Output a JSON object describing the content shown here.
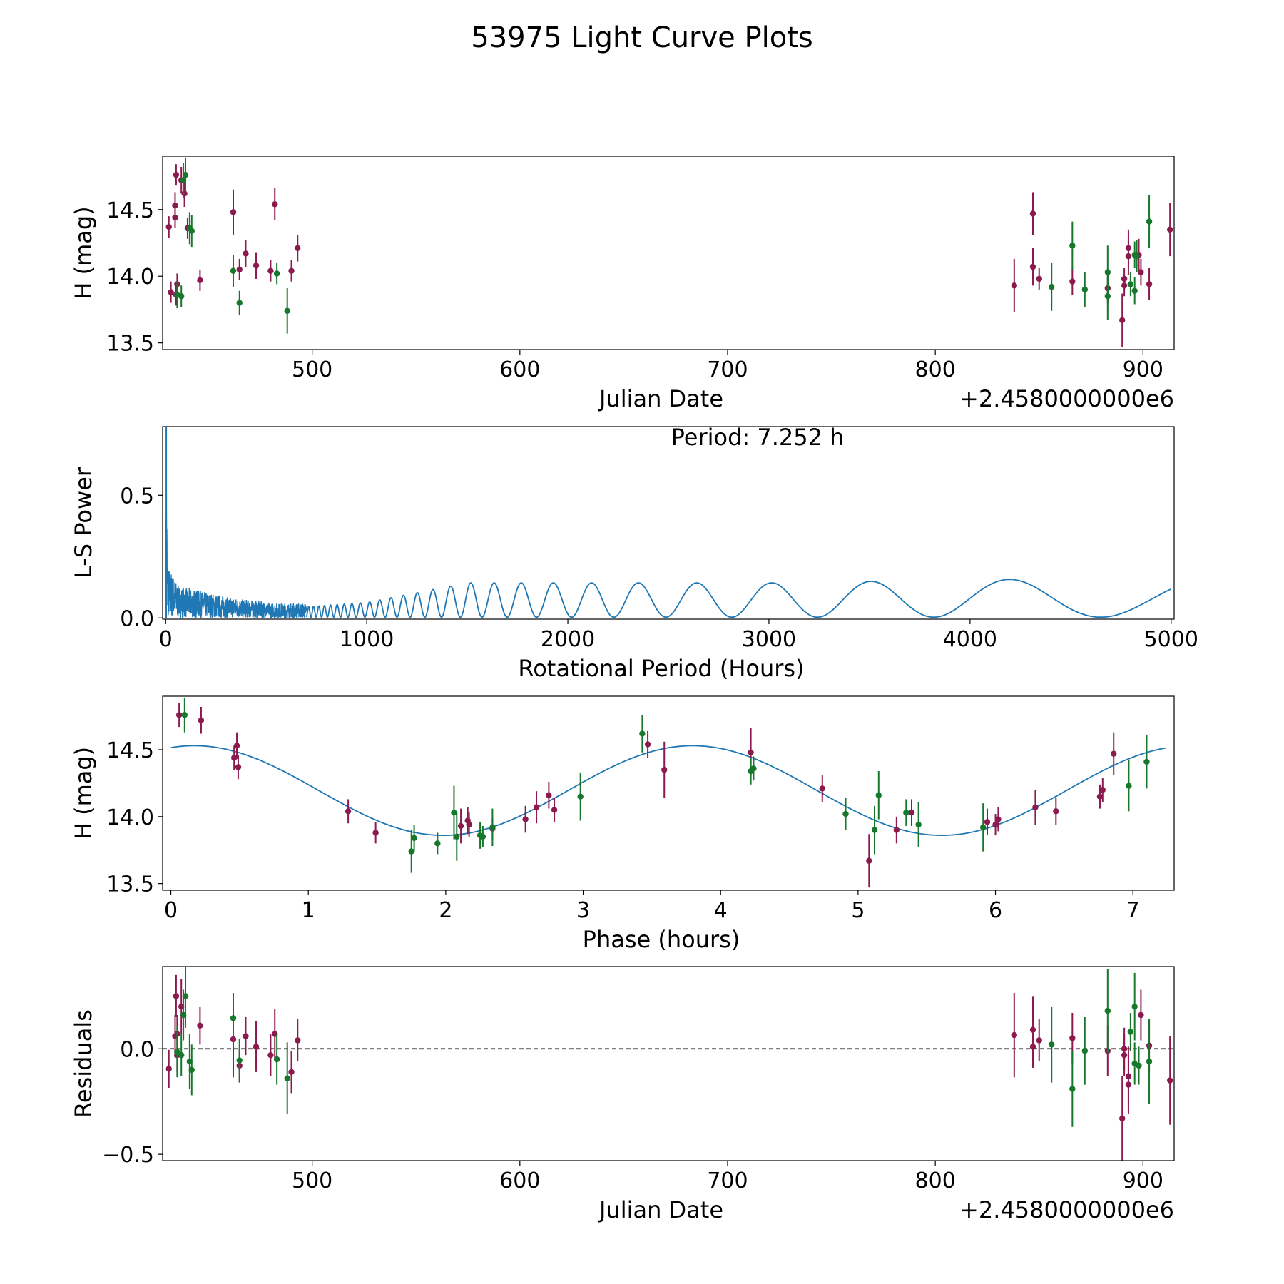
{
  "figure": {
    "title": "53975 Light Curve Plots",
    "colors": {
      "series_a": "#8b1a4f",
      "series_b": "#15782b",
      "curve": "#1f77b4",
      "axis": "#000000"
    }
  },
  "chart_data": [
    {
      "id": "lightcurve",
      "type": "scatter",
      "title": "",
      "xlabel": "Julian Date",
      "ylabel": "H (mag)",
      "offset_label": "+2.4580000000e6",
      "xlim": [
        428,
        915
      ],
      "ylim": [
        13.45,
        14.9
      ],
      "xticks": [
        500,
        600,
        700,
        800,
        900
      ],
      "xtick_labels": [
        "500",
        "600",
        "700",
        "800",
        "900"
      ],
      "yticks": [
        13.5,
        14.0,
        14.5
      ],
      "ytick_labels": [
        "13.5",
        "14.0",
        "14.5"
      ],
      "series": [
        {
          "name": "series-a",
          "color": "#8b1a4f",
          "points": [
            [
              431,
              14.37,
              0.08
            ],
            [
              432,
              13.88,
              0.08
            ],
            [
              434,
              14.44,
              0.08
            ],
            [
              434,
              14.53,
              0.1
            ],
            [
              434.5,
              14.76,
              0.08
            ],
            [
              434.5,
              13.86,
              0.08
            ],
            [
              435,
              13.94,
              0.08
            ],
            [
              437,
              14.72,
              0.1
            ],
            [
              438.5,
              14.62,
              0.1
            ],
            [
              440,
              14.36,
              0.08
            ],
            [
              446,
              13.97,
              0.08
            ],
            [
              462,
              14.48,
              0.17
            ],
            [
              465,
              14.05,
              0.08
            ],
            [
              468,
              14.17,
              0.1
            ],
            [
              473,
              14.08,
              0.1
            ],
            [
              480,
              14.04,
              0.08
            ],
            [
              482,
              14.54,
              0.12
            ],
            [
              490,
              14.04,
              0.08
            ],
            [
              493,
              14.21,
              0.1
            ],
            [
              838,
              13.93,
              0.2
            ],
            [
              847,
              14.07,
              0.14
            ],
            [
              847,
              14.47,
              0.16
            ],
            [
              850,
              13.98,
              0.08
            ],
            [
              866,
              13.96,
              0.1
            ],
            [
              883,
              13.91,
              0.12
            ],
            [
              890,
              13.67,
              0.2
            ],
            [
              891,
              13.93,
              0.08
            ],
            [
              891,
              13.98,
              0.08
            ],
            [
              893,
              14.15,
              0.14
            ],
            [
              893,
              14.21,
              0.14
            ],
            [
              898,
              14.16,
              0.12
            ],
            [
              899,
              14.03,
              0.1
            ],
            [
              903,
              13.94,
              0.12
            ],
            [
              913,
              14.35,
              0.2
            ]
          ]
        },
        {
          "name": "series-b",
          "color": "#15782b",
          "points": [
            [
              435,
              13.86,
              0.1
            ],
            [
              437,
              13.85,
              0.08
            ],
            [
              438,
              14.72,
              0.13
            ],
            [
              439,
              14.76,
              0.13
            ],
            [
              441,
              14.36,
              0.12
            ],
            [
              442,
              14.34,
              0.12
            ],
            [
              462,
              14.04,
              0.12
            ],
            [
              465,
              13.8,
              0.09
            ],
            [
              483,
              14.02,
              0.08
            ],
            [
              488,
              13.74,
              0.17
            ],
            [
              856,
              13.92,
              0.18
            ],
            [
              866,
              14.23,
              0.18
            ],
            [
              872,
              13.9,
              0.13
            ],
            [
              883,
              14.03,
              0.2
            ],
            [
              883,
              13.85,
              0.18
            ],
            [
              894,
              13.94,
              0.09
            ],
            [
              896,
              14.16,
              0.1
            ],
            [
              896,
              13.89,
              0.1
            ],
            [
              897,
              14.15,
              0.12
            ],
            [
              903,
              14.41,
              0.2
            ]
          ]
        }
      ]
    },
    {
      "id": "periodogram",
      "type": "line",
      "title": "",
      "annotation": "Period: 7.252 h",
      "xlabel": "Rotational Period (Hours)",
      "ylabel": "L-S Power",
      "xlim": [
        -15,
        5015
      ],
      "ylim": [
        -0.005,
        0.78
      ],
      "xticks": [
        0,
        1000,
        2000,
        3000,
        4000,
        5000
      ],
      "xtick_labels": [
        "0",
        "1000",
        "2000",
        "3000",
        "4000",
        "5000"
      ],
      "yticks": [
        0.0,
        0.5
      ],
      "ytick_labels": [
        "0.0",
        "0.5"
      ],
      "envelope": [
        [
          0,
          0.0
        ],
        [
          1000,
          0.06
        ],
        [
          1500,
          0.14
        ],
        [
          3000,
          0.14
        ],
        [
          4700,
          0.16
        ],
        [
          5000,
          0.16
        ]
      ],
      "notes": "dense low-period noise near 0-700 h with spike to ~0.78 near 7 h"
    },
    {
      "id": "phase",
      "type": "scatter",
      "title": "",
      "xlabel": "Phase (hours)",
      "ylabel": "H (mag)",
      "xlim": [
        -0.06,
        7.3
      ],
      "ylim": [
        13.45,
        14.9
      ],
      "xticks": [
        0,
        1,
        2,
        3,
        4,
        5,
        6,
        7
      ],
      "xtick_labels": [
        "0",
        "1",
        "2",
        "3",
        "4",
        "5",
        "6",
        "7"
      ],
      "yticks": [
        13.5,
        14.0,
        14.5
      ],
      "ytick_labels": [
        "13.5",
        "14.0",
        "14.5"
      ],
      "model": {
        "mean": 14.195,
        "amplitude": 0.335,
        "period": 3.626,
        "phase0": 0.17
      },
      "series": [
        {
          "name": "series-a",
          "color": "#8b1a4f",
          "points": [
            [
              0.06,
              14.76,
              0.09
            ],
            [
              0.22,
              14.72,
              0.1
            ],
            [
              0.46,
              14.44,
              0.09
            ],
            [
              0.48,
              14.53,
              0.1
            ],
            [
              0.49,
              14.37,
              0.09
            ],
            [
              1.29,
              14.04,
              0.09
            ],
            [
              1.49,
              13.88,
              0.08
            ],
            [
              2.11,
              13.93,
              0.13
            ],
            [
              2.16,
              13.97,
              0.1
            ],
            [
              2.17,
              13.94,
              0.09
            ],
            [
              2.34,
              13.91,
              0.08
            ],
            [
              2.58,
              13.98,
              0.1
            ],
            [
              2.66,
              14.07,
              0.12
            ],
            [
              2.75,
              14.16,
              0.1
            ],
            [
              2.79,
              14.05,
              0.09
            ],
            [
              3.47,
              14.54,
              0.1
            ],
            [
              3.59,
              14.35,
              0.21
            ],
            [
              4.22,
              14.48,
              0.18
            ],
            [
              4.74,
              14.21,
              0.1
            ],
            [
              5.08,
              13.67,
              0.2
            ],
            [
              5.28,
              13.9,
              0.1
            ],
            [
              5.39,
              14.03,
              0.1
            ],
            [
              5.94,
              13.96,
              0.1
            ],
            [
              6.0,
              13.94,
              0.08
            ],
            [
              6.02,
              13.98,
              0.09
            ],
            [
              6.29,
              14.07,
              0.13
            ],
            [
              6.44,
              14.04,
              0.1
            ],
            [
              6.76,
              14.15,
              0.09
            ],
            [
              6.78,
              14.2,
              0.09
            ],
            [
              6.86,
              14.47,
              0.16
            ]
          ]
        },
        {
          "name": "series-b",
          "color": "#15782b",
          "points": [
            [
              0.1,
              14.76,
              0.13
            ],
            [
              1.75,
              13.74,
              0.16
            ],
            [
              1.77,
              13.84,
              0.1
            ],
            [
              1.94,
              13.8,
              0.08
            ],
            [
              2.06,
              14.03,
              0.2
            ],
            [
              2.08,
              13.85,
              0.18
            ],
            [
              2.25,
              13.86,
              0.1
            ],
            [
              2.27,
              13.85,
              0.08
            ],
            [
              2.34,
              13.92,
              0.14
            ],
            [
              2.98,
              14.15,
              0.18
            ],
            [
              3.43,
              14.62,
              0.14
            ],
            [
              4.22,
              14.34,
              0.1
            ],
            [
              4.24,
              14.36,
              0.09
            ],
            [
              4.91,
              14.02,
              0.12
            ],
            [
              5.12,
              13.9,
              0.18
            ],
            [
              5.15,
              14.16,
              0.18
            ],
            [
              5.35,
              14.03,
              0.1
            ],
            [
              5.44,
              13.94,
              0.17
            ],
            [
              5.91,
              13.92,
              0.18
            ],
            [
              6.97,
              14.23,
              0.19
            ],
            [
              7.1,
              14.41,
              0.2
            ]
          ]
        }
      ]
    },
    {
      "id": "residuals",
      "type": "scatter",
      "title": "",
      "xlabel": "Julian Date",
      "ylabel": "Residuals",
      "offset_label": "+2.4580000000e6",
      "xlim": [
        428,
        915
      ],
      "ylim": [
        -0.53,
        0.39
      ],
      "xticks": [
        500,
        600,
        700,
        800,
        900
      ],
      "xtick_labels": [
        "500",
        "600",
        "700",
        "800",
        "900"
      ],
      "yticks": [
        -0.5,
        0.0
      ],
      "ytick_labels": [
        "−0.5",
        "0.0"
      ],
      "reference_line": 0.0,
      "series": [
        {
          "name": "series-a",
          "color": "#8b1a4f",
          "points": [
            [
              431,
              -0.095,
              0.09
            ],
            [
              434,
              0.06,
              0.1
            ],
            [
              434.5,
              0.25,
              0.1
            ],
            [
              435,
              -0.03,
              0.08
            ],
            [
              435,
              0.07,
              0.09
            ],
            [
              437,
              0.2,
              0.13
            ],
            [
              446,
              0.11,
              0.09
            ],
            [
              462,
              0.045,
              0.18
            ],
            [
              465,
              -0.08,
              0.08
            ],
            [
              468,
              0.06,
              0.09
            ],
            [
              473,
              0.01,
              0.12
            ],
            [
              480,
              -0.03,
              0.1
            ],
            [
              482,
              0.07,
              0.12
            ],
            [
              490,
              -0.11,
              0.1
            ],
            [
              493,
              0.04,
              0.1
            ],
            [
              838,
              0.065,
              0.2
            ],
            [
              847,
              0.09,
              0.16
            ],
            [
              847,
              0.01,
              0.1
            ],
            [
              850,
              0.04,
              0.1
            ],
            [
              866,
              0.05,
              0.12
            ],
            [
              883,
              -0.01,
              0.12
            ],
            [
              890,
              -0.33,
              0.2
            ],
            [
              891,
              0.0,
              0.1
            ],
            [
              891,
              -0.03,
              0.1
            ],
            [
              893,
              -0.13,
              0.14
            ],
            [
              893,
              -0.17,
              0.14
            ],
            [
              899,
              0.16,
              0.12
            ],
            [
              903,
              0.015,
              0.12
            ],
            [
              913,
              -0.15,
              0.21
            ]
          ]
        },
        {
          "name": "series-b",
          "color": "#15782b",
          "points": [
            [
              435,
              -0.015,
              0.12
            ],
            [
              437,
              -0.03,
              0.1
            ],
            [
              438,
              0.16,
              0.12
            ],
            [
              439,
              0.25,
              0.15
            ],
            [
              441,
              -0.06,
              0.13
            ],
            [
              442,
              -0.1,
              0.12
            ],
            [
              462,
              0.145,
              0.12
            ],
            [
              465,
              -0.055,
              0.1
            ],
            [
              483,
              -0.05,
              0.12
            ],
            [
              488,
              -0.14,
              0.17
            ],
            [
              856,
              0.02,
              0.18
            ],
            [
              866,
              -0.19,
              0.18
            ],
            [
              872,
              -0.01,
              0.16
            ],
            [
              883,
              0.18,
              0.2
            ],
            [
              894,
              0.08,
              0.09
            ],
            [
              896,
              0.2,
              0.16
            ],
            [
              896,
              -0.07,
              0.1
            ],
            [
              898,
              -0.08,
              0.09
            ],
            [
              903,
              -0.06,
              0.2
            ]
          ]
        }
      ]
    }
  ]
}
